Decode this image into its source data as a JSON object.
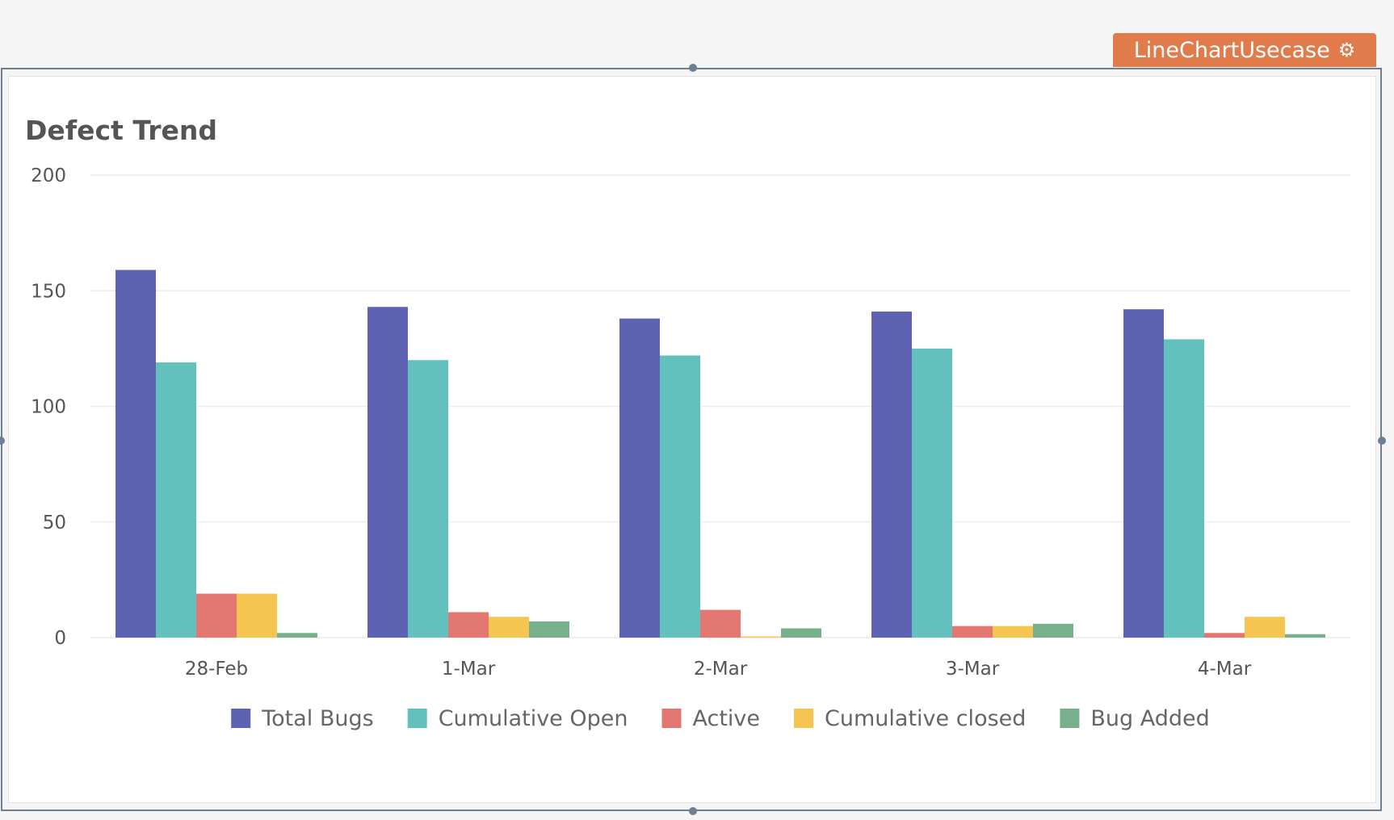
{
  "widget": {
    "name": "LineChartUsecase",
    "icon": "gear-icon"
  },
  "chart_data": {
    "type": "bar",
    "title": "Defect Trend",
    "xlabel": "",
    "ylabel": "",
    "ylim": [
      0,
      200
    ],
    "yticks": [
      0,
      50,
      100,
      150,
      200
    ],
    "grid": true,
    "legend": "bottom",
    "categories": [
      "28-Feb",
      "1-Mar",
      "2-Mar",
      "3-Mar",
      "4-Mar"
    ],
    "series": [
      {
        "name": "Total Bugs",
        "color": "#5f62b2",
        "values": [
          159,
          143,
          138,
          141,
          142
        ]
      },
      {
        "name": "Cumulative Open",
        "color": "#62c1bc",
        "values": [
          119,
          120,
          122,
          125,
          129
        ]
      },
      {
        "name": "Active",
        "color": "#e27772",
        "values": [
          19,
          11,
          12,
          5,
          2
        ]
      },
      {
        "name": "Cumulative closed",
        "color": "#f5c552",
        "values": [
          19,
          9,
          0.5,
          5,
          9
        ]
      },
      {
        "name": "Bug Added",
        "color": "#78b08e",
        "values": [
          2,
          7,
          4,
          6,
          1.5
        ]
      }
    ]
  }
}
